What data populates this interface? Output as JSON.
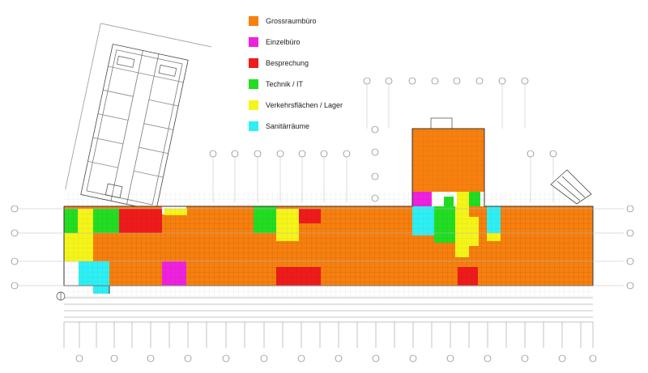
{
  "legend": [
    {
      "key": "grossraum",
      "label": "Grossraumbüro",
      "color": "#f7800f"
    },
    {
      "key": "einzel",
      "label": "Einzelbüro",
      "color": "#ee22dd"
    },
    {
      "key": "besprechung",
      "label": "Besprechung",
      "color": "#ee1b1b"
    },
    {
      "key": "technik",
      "label": "Technik / IT",
      "color": "#22dd22"
    },
    {
      "key": "verkehr",
      "label": "Verkehrsflächen / Lager",
      "color": "#f5f51a"
    },
    {
      "key": "sanitaer",
      "label": "Sanitärräume",
      "color": "#2ef0f4"
    }
  ],
  "colors": {
    "line": "#333333",
    "grid": "#bbbbbb",
    "fill_line": "#c56a10"
  }
}
